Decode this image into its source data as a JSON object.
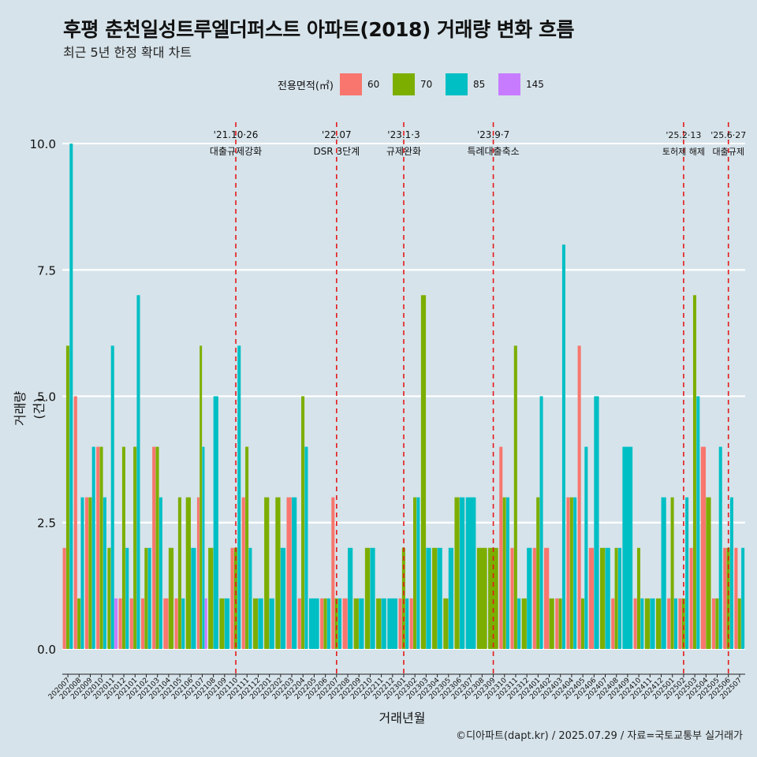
{
  "title": "후평 춘천일성트루엘더퍼스트 아파트(2018) 거래량 변화 흐름",
  "subtitle": "최근 5년 한정 확대 차트",
  "caption": "©디아파트(dapt.kr) / 2025.07.29 / 자료=국토교통부 실거래가",
  "colors": {
    "background": "#d6e3ea",
    "grid": "#ffffff",
    "event_line": "#e41a1c"
  },
  "chart_data": {
    "type": "bar",
    "title": "후평 춘천일성트루엘더퍼스트 아파트(2018) 거래량 변화 흐름",
    "xlabel": "거래년월",
    "ylabel": "거래량(건)",
    "ylim": [
      -0.5,
      10.5
    ],
    "yticks": [
      0.0,
      2.5,
      5.0,
      7.5,
      10.0
    ],
    "ytick_labels": [
      "0.0",
      "2.5",
      "5.0",
      "7.5",
      "10.0"
    ],
    "grid": true,
    "legend": {
      "title": "전용면적(㎡)",
      "position": "top"
    },
    "categories": [
      "202007",
      "202008",
      "202009",
      "202010",
      "202011",
      "202012",
      "202101",
      "202102",
      "202103",
      "202104",
      "202105",
      "202106",
      "202107",
      "202108",
      "202109",
      "202110",
      "202111",
      "202112",
      "202201",
      "202202",
      "202203",
      "202204",
      "202205",
      "202206",
      "202207",
      "202208",
      "202209",
      "202210",
      "202211",
      "202212",
      "202301",
      "202302",
      "202303",
      "202304",
      "202305",
      "202306",
      "202307",
      "202308",
      "202309",
      "202310",
      "202311",
      "202312",
      "202401",
      "202402",
      "202403",
      "202404",
      "202405",
      "202406",
      "202407",
      "202408",
      "202409",
      "202410",
      "202411",
      "202412",
      "202501",
      "202502",
      "202503",
      "202504",
      "202505",
      "202506",
      "202507"
    ],
    "series": [
      {
        "name": "60",
        "color": "#f8766d",
        "values": [
          2,
          5,
          3,
          4,
          0,
          1,
          1,
          1,
          4,
          1,
          1,
          0,
          3,
          0,
          0,
          2,
          3,
          0,
          0,
          0,
          3,
          1,
          0,
          1,
          3,
          1,
          0,
          0,
          0,
          0,
          1,
          1,
          0,
          0,
          0,
          0,
          0,
          0,
          0,
          4,
          2,
          0,
          2,
          2,
          1,
          3,
          6,
          2,
          0,
          1,
          0,
          1,
          0,
          0,
          1,
          1,
          2,
          4,
          1,
          2,
          2
        ]
      },
      {
        "name": "70",
        "color": "#7cae00",
        "values": [
          6,
          1,
          3,
          4,
          2,
          4,
          4,
          2,
          4,
          2,
          3,
          3,
          6,
          2,
          1,
          2,
          4,
          1,
          3,
          3,
          0,
          5,
          0,
          1,
          1,
          0,
          1,
          2,
          1,
          0,
          2,
          3,
          7,
          2,
          1,
          3,
          0,
          2,
          2,
          3,
          6,
          1,
          3,
          1,
          1,
          3,
          1,
          0,
          2,
          2,
          0,
          2,
          1,
          1,
          3,
          1,
          7,
          3,
          1,
          2,
          1
        ]
      },
      {
        "name": "85",
        "color": "#00bfc4",
        "values": [
          10,
          3,
          4,
          3,
          6,
          2,
          7,
          2,
          3,
          0,
          1,
          2,
          4,
          5,
          1,
          6,
          2,
          1,
          1,
          2,
          3,
          4,
          1,
          1,
          1,
          2,
          1,
          2,
          1,
          1,
          1,
          3,
          2,
          2,
          2,
          3,
          3,
          0,
          0,
          3,
          1,
          2,
          5,
          0,
          8,
          3,
          4,
          5,
          2,
          2,
          4,
          1,
          1,
          3,
          1,
          3,
          5,
          0,
          4,
          3,
          2
        ]
      },
      {
        "name": "145",
        "color": "#c77cff",
        "values": [
          0,
          0,
          0,
          0,
          1,
          0,
          0,
          0,
          0,
          0,
          0,
          0,
          1,
          0,
          0,
          0,
          0,
          0,
          0,
          0,
          0,
          0,
          0,
          0,
          0,
          0,
          0,
          0,
          0,
          0,
          0,
          0,
          0,
          0,
          0,
          0,
          0,
          0,
          0,
          0,
          0,
          0,
          0,
          0,
          0,
          0,
          0,
          0,
          0,
          0,
          0,
          0,
          0,
          0,
          0,
          0,
          0,
          0,
          0,
          0,
          0
        ]
      }
    ],
    "annotations": [
      {
        "date": "'21.10·26",
        "label": "대출규제강화",
        "category": "202110"
      },
      {
        "date": "'22.07",
        "label": "DSR 3단계",
        "category": "202207"
      },
      {
        "date": "'23.1·3",
        "label": "규제완화",
        "category": "202301"
      },
      {
        "date": "'23.9·7",
        "label": "특례대출축소",
        "category": "202309"
      },
      {
        "date": "'25.2·13",
        "label": "토허제 해제",
        "category": "202502"
      },
      {
        "date": "'25.6·27",
        "label": "대출규제",
        "category": "202506"
      }
    ]
  }
}
